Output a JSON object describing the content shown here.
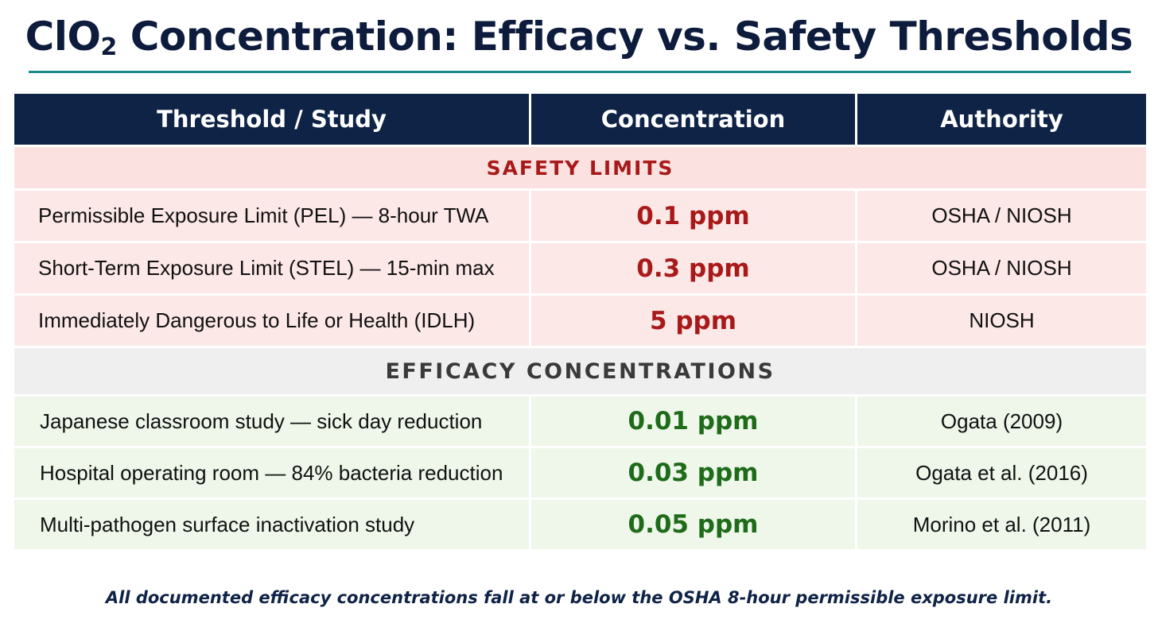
{
  "title": {
    "main": "ClO",
    "sub": "2",
    "rest": " Concentration: Efficacy vs. Safety Thresholds"
  },
  "table": {
    "headers": [
      "Threshold / Study",
      "Concentration",
      "Authority"
    ],
    "safety_section": "SAFETY LIMITS",
    "safety_rows": [
      {
        "label": "Permissible Exposure Limit (PEL) — 8-hour TWA",
        "concentration": "0.1 ppm",
        "authority": "OSHA / NIOSH"
      },
      {
        "label": "Short-Term Exposure Limit (STEL) — 15-min max",
        "concentration": "0.3 ppm",
        "authority": "OSHA / NIOSH"
      },
      {
        "label": "Immediately Dangerous to Life or Health (IDLH)",
        "concentration": "5 ppm",
        "authority": "NIOSH"
      }
    ],
    "efficacy_section": "EFFICACY CONCENTRATIONS",
    "efficacy_rows": [
      {
        "label": "Japanese classroom study — sick day reduction",
        "concentration": "0.01 ppm",
        "authority": "Ogata (2009)"
      },
      {
        "label": "Hospital operating room — 84% bacteria reduction",
        "concentration": "0.03 ppm",
        "authority": "Ogata et al. (2016)"
      },
      {
        "label": "Multi-pathogen surface inactivation study",
        "concentration": "0.05 ppm",
        "authority": "Morino et al. (2011)"
      }
    ]
  },
  "footnote": "All documented efficacy concentrations fall at or below the OSHA 8-hour permissible exposure limit.",
  "colors": {
    "header_bg": "#0f2347",
    "accent_rule": "#1e8a86",
    "safety_text": "#a81a1a",
    "efficacy_text": "#1e6b1a",
    "safety_row_bg": "#fce8e6",
    "efficacy_row_bg": "#eef7ea"
  }
}
